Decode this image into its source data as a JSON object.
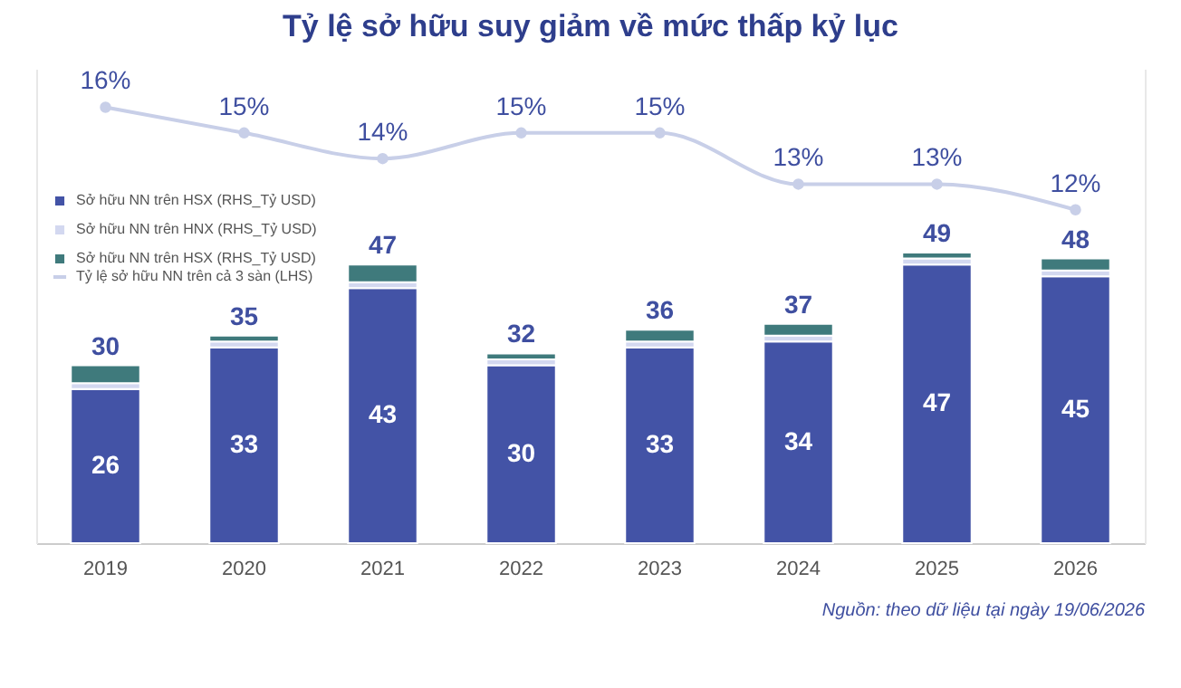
{
  "chart_data": {
    "type": "bar",
    "title": "Tỷ lệ sở hữu suy giảm về mức thấp kỷ lục",
    "categories": [
      "2019",
      "2020",
      "2021",
      "2022",
      "2023",
      "2024",
      "2025",
      "2026"
    ],
    "stacked": true,
    "series": [
      {
        "name": "Sở hữu NN trên HSX (RHS_Tỷ USD)",
        "color": "#4353a6",
        "values": [
          26,
          33,
          43,
          30,
          33,
          34,
          47,
          45
        ],
        "value_labels": [
          "26",
          "33",
          "43",
          "30",
          "33",
          "34",
          "47",
          "45"
        ]
      },
      {
        "name": "Sở hữu NN trên HNX (RHS_Tỷ USD)",
        "color": "#d3d8f0",
        "values": [
          1,
          1,
          1,
          1,
          1,
          1,
          1,
          1
        ]
      },
      {
        "name": "Sở hữu NN trên HSX (RHS_Tỷ USD)",
        "color": "#3f7a7c",
        "values": [
          3,
          1,
          3,
          1,
          2,
          2,
          1,
          2
        ]
      },
      {
        "name": "Tỷ lệ sở hữu NN trên cả 3 sàn (LHS)",
        "type": "line",
        "axis": "y2",
        "color": "#c8cfe8",
        "marker": "circle",
        "values": [
          16,
          15,
          14,
          15,
          15,
          13,
          13,
          12
        ],
        "value_labels": [
          "16%",
          "15%",
          "14%",
          "15%",
          "15%",
          "13%",
          "13%",
          "12%"
        ]
      }
    ],
    "totals": [
      "30",
      "35",
      "47",
      "32",
      "36",
      "37",
      "49",
      "48"
    ],
    "ylim": [
      0,
      80
    ],
    "y2lim": [
      -1,
      17.5
    ],
    "tick_labels": "x",
    "legend": "top left",
    "annotations": [
      "Nguồn: theo dữ liệu tại ngày 19/06/2026"
    ]
  }
}
